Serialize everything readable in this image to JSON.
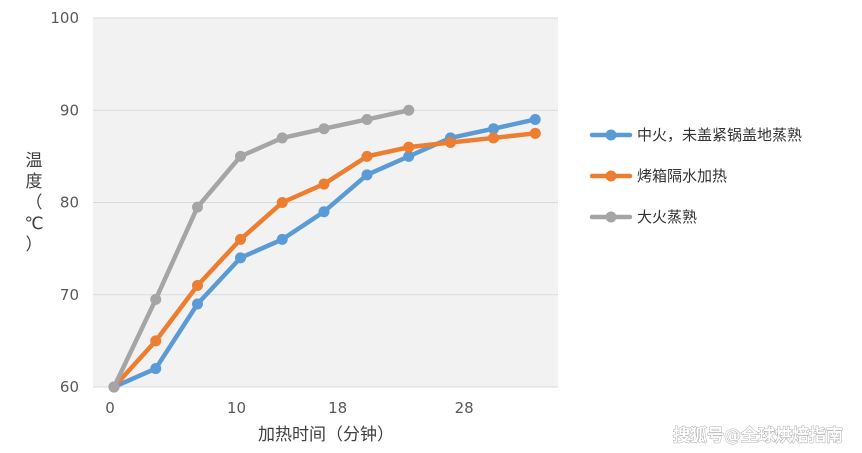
{
  "chart_data": {
    "type": "line",
    "xlabel": "加热时间（分钟）",
    "ylabel": "温度（℃）",
    "xlim": [
      0,
      32
    ],
    "ylim": [
      60,
      100
    ],
    "x_ticks": [
      "0",
      "10",
      "18",
      "28"
    ],
    "y_ticks": [
      "60",
      "70",
      "80",
      "90",
      "100"
    ],
    "grid": true,
    "legend_position": "right",
    "series": [
      {
        "name": "中火，未盖紧锅盖地蒸熟",
        "color": "#5B9BD5",
        "x": [
          0,
          3.3,
          6.6,
          10,
          13.3,
          16.6,
          20,
          23.3,
          26.6,
          30,
          33.3
        ],
        "values": [
          60,
          62,
          69,
          74,
          76,
          79,
          83,
          85,
          87,
          88,
          89
        ]
      },
      {
        "name": "烤箱隔水加热",
        "color": "#ED7D31",
        "x": [
          0,
          3.3,
          6.6,
          10,
          13.3,
          16.6,
          20,
          23.3,
          26.6,
          30,
          33.3
        ],
        "values": [
          60,
          65,
          71,
          76,
          80,
          82,
          85,
          86,
          86.5,
          87,
          87.5
        ]
      },
      {
        "name": "大火蒸熟",
        "color": "#A5A5A5",
        "x": [
          0,
          3.3,
          6.6,
          10,
          13.3,
          16.6,
          20,
          23.3
        ],
        "values": [
          60,
          69.5,
          79.5,
          85,
          87,
          88,
          89,
          90
        ]
      }
    ]
  },
  "watermark": "搜狐号@全球烘焙指南"
}
